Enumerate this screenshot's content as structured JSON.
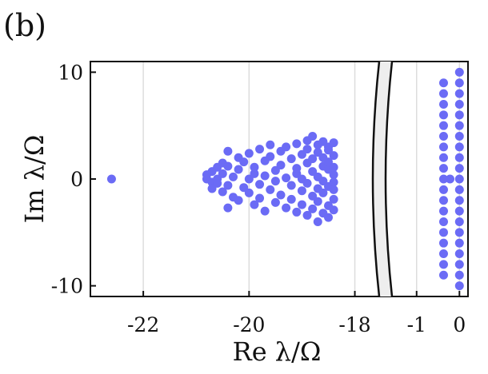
{
  "panel_label": "(b)",
  "chart_data": {
    "type": "scatter",
    "xlabel": "Re λ/Ω",
    "ylabel": "Im λ/Ω",
    "broken_x_axis": true,
    "left_segment": {
      "xlim": [
        -23.0,
        -17.6
      ],
      "xticks": [
        -22,
        -20,
        -18
      ]
    },
    "right_segment": {
      "xlim": [
        -1.5,
        0.2
      ],
      "xticks": [
        -1,
        0
      ]
    },
    "ylim": [
      -11,
      11
    ],
    "yticks": [
      -10,
      0,
      10
    ],
    "xtick_labels": [
      "-22",
      "-20",
      "-18",
      "-1",
      "0"
    ],
    "ytick_labels": [
      "10",
      "0",
      "-10"
    ],
    "grid": "vertical",
    "marker_color": "#6b6bf5",
    "series": [
      {
        "points_left": [
          [
            -22.6,
            0.0
          ],
          [
            -20.8,
            0.0
          ],
          [
            -20.8,
            0.4
          ],
          [
            -20.7,
            -0.3
          ],
          [
            -20.7,
            0.7
          ],
          [
            -20.7,
            -0.9
          ],
          [
            -20.6,
            0.0
          ],
          [
            -20.6,
            1.1
          ],
          [
            -20.6,
            -0.4
          ],
          [
            -20.5,
            1.5
          ],
          [
            -20.5,
            -1.2
          ],
          [
            -20.5,
            0.5
          ],
          [
            -20.4,
            2.6
          ],
          [
            -20.4,
            -0.6
          ],
          [
            -20.4,
            1.2
          ],
          [
            -20.4,
            -2.7
          ],
          [
            -20.3,
            -1.7
          ],
          [
            -20.3,
            0.2
          ],
          [
            -20.2,
            2.0
          ],
          [
            -20.2,
            -2.0
          ],
          [
            -20.2,
            0.9
          ],
          [
            -20.1,
            -0.8
          ],
          [
            -20.1,
            1.6
          ],
          [
            -20.0,
            2.4
          ],
          [
            -20.0,
            -1.3
          ],
          [
            -20.0,
            0.0
          ],
          [
            -19.9,
            0.5
          ],
          [
            -19.9,
            -2.4
          ],
          [
            -19.9,
            1.1
          ],
          [
            -19.8,
            2.8
          ],
          [
            -19.8,
            -0.5
          ],
          [
            -19.8,
            -1.8
          ],
          [
            -19.7,
            1.7
          ],
          [
            -19.7,
            -3.0
          ],
          [
            -19.7,
            0.3
          ],
          [
            -19.6,
            3.2
          ],
          [
            -19.6,
            -1.0
          ],
          [
            -19.6,
            2.1
          ],
          [
            -19.5,
            -2.2
          ],
          [
            -19.5,
            0.8
          ],
          [
            -19.5,
            -0.2
          ],
          [
            -19.4,
            2.6
          ],
          [
            -19.4,
            -1.5
          ],
          [
            -19.4,
            1.3
          ],
          [
            -19.3,
            -2.7
          ],
          [
            -19.3,
            0.1
          ],
          [
            -19.3,
            3.0
          ],
          [
            -19.2,
            -0.6
          ],
          [
            -19.2,
            1.9
          ],
          [
            -19.2,
            -1.9
          ],
          [
            -19.1,
            3.3
          ],
          [
            -19.1,
            0.5
          ],
          [
            -19.1,
            -3.1
          ],
          [
            -19.1,
            1.0
          ],
          [
            -19.0,
            -1.1
          ],
          [
            -19.0,
            2.3
          ],
          [
            -19.0,
            -2.4
          ],
          [
            -19.0,
            0.0
          ],
          [
            -18.9,
            3.6
          ],
          [
            -18.9,
            1.5
          ],
          [
            -18.9,
            -0.4
          ],
          [
            -18.9,
            -3.4
          ],
          [
            -18.9,
            2.8
          ],
          [
            -18.8,
            -1.6
          ],
          [
            -18.8,
            0.7
          ],
          [
            -18.8,
            4.0
          ],
          [
            -18.8,
            -2.8
          ],
          [
            -18.8,
            1.9
          ],
          [
            -18.7,
            -4.0
          ],
          [
            -18.7,
            -0.9
          ],
          [
            -18.7,
            3.2
          ],
          [
            -18.7,
            0.2
          ],
          [
            -18.7,
            -2.1
          ],
          [
            -18.7,
            2.5
          ],
          [
            -18.6,
            -3.2
          ],
          [
            -18.6,
            1.2
          ],
          [
            -18.6,
            3.5
          ],
          [
            -18.6,
            -0.2
          ],
          [
            -18.6,
            -1.3
          ],
          [
            -18.6,
            2.0
          ],
          [
            -18.5,
            -2.5
          ],
          [
            -18.5,
            0.9
          ],
          [
            -18.5,
            3.0
          ],
          [
            -18.5,
            -3.6
          ],
          [
            -18.5,
            1.6
          ],
          [
            -18.5,
            -0.7
          ],
          [
            -18.5,
            2.7
          ],
          [
            -18.4,
            -1.9
          ],
          [
            -18.4,
            0.4
          ],
          [
            -18.4,
            3.4
          ],
          [
            -18.4,
            -2.9
          ],
          [
            -18.4,
            1.1
          ],
          [
            -18.4,
            -0.3
          ],
          [
            -18.4,
            2.2
          ],
          [
            -18.4,
            -1.0
          ]
        ],
        "points_right": [
          [
            -0.37,
            9.0
          ],
          [
            -0.37,
            8.0
          ],
          [
            -0.37,
            7.0
          ],
          [
            -0.37,
            6.0
          ],
          [
            -0.37,
            5.0
          ],
          [
            -0.37,
            4.0
          ],
          [
            -0.37,
            3.0
          ],
          [
            -0.37,
            2.0
          ],
          [
            -0.37,
            1.0
          ],
          [
            -0.37,
            0.0
          ],
          [
            -0.37,
            -1.0
          ],
          [
            -0.37,
            -2.0
          ],
          [
            -0.37,
            -3.0
          ],
          [
            -0.37,
            -4.0
          ],
          [
            -0.37,
            -5.0
          ],
          [
            -0.37,
            -6.0
          ],
          [
            -0.37,
            -7.0
          ],
          [
            -0.37,
            -8.0
          ],
          [
            -0.37,
            -9.0
          ],
          [
            -0.22,
            0.0
          ],
          [
            0.0,
            10.0
          ],
          [
            0.0,
            9.0
          ],
          [
            0.0,
            8.0
          ],
          [
            0.0,
            7.0
          ],
          [
            0.0,
            6.0
          ],
          [
            0.0,
            5.0
          ],
          [
            0.0,
            4.0
          ],
          [
            0.0,
            3.0
          ],
          [
            0.0,
            2.0
          ],
          [
            0.0,
            1.0
          ],
          [
            0.0,
            0.0
          ],
          [
            0.0,
            -1.0
          ],
          [
            0.0,
            -2.0
          ],
          [
            0.0,
            -3.0
          ],
          [
            0.0,
            -4.0
          ],
          [
            0.0,
            -5.0
          ],
          [
            0.0,
            -6.0
          ],
          [
            0.0,
            -7.0
          ],
          [
            0.0,
            -8.0
          ],
          [
            0.0,
            -9.0
          ],
          [
            0.0,
            -10.0
          ]
        ]
      }
    ]
  }
}
